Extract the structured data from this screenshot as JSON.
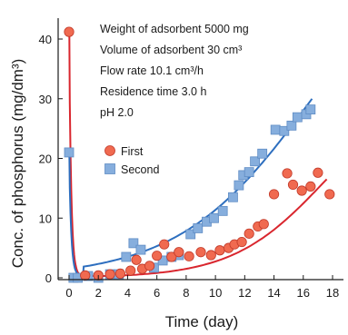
{
  "chart_data": {
    "type": "scatter",
    "xlabel": "Time (day)",
    "ylabel": "Conc. of phosphorus (mg/dm³)",
    "xlim": [
      -0.3,
      18.2
    ],
    "ylim": [
      0,
      45
    ],
    "x_ticks": [
      0,
      2,
      4,
      6,
      8,
      10,
      12,
      14,
      16,
      18
    ],
    "y_ticks": [
      0,
      10,
      20,
      30,
      40
    ],
    "grid": false,
    "legend_position": "center-left",
    "annotations": [
      "Weight of adsorbent 5000 mg",
      "Volume of adsorbent 30 cm³",
      "Flow rate 10.1 cm³/h",
      "Residence time 3.0 h",
      "pH 2.0"
    ],
    "series": [
      {
        "name": "First",
        "marker": "circle",
        "color": "#e8503a",
        "curve_color": "#d9262e",
        "points": [
          [
            0,
            41.2
          ],
          [
            1.1,
            0.4
          ],
          [
            2,
            0.4
          ],
          [
            2.8,
            0.6
          ],
          [
            3.5,
            0.7
          ],
          [
            4.2,
            1.2
          ],
          [
            4.6,
            3.0
          ],
          [
            5,
            1.5
          ],
          [
            5.5,
            2.0
          ],
          [
            6,
            3.7
          ],
          [
            6.5,
            5.6
          ],
          [
            7,
            3.5
          ],
          [
            7.5,
            4.3
          ],
          [
            8.2,
            3.6
          ],
          [
            9,
            4.3
          ],
          [
            9.7,
            3.8
          ],
          [
            10.3,
            4.6
          ],
          [
            10.9,
            5.0
          ],
          [
            11.3,
            5.6
          ],
          [
            11.8,
            6.0
          ],
          [
            12.3,
            7.4
          ],
          [
            12.9,
            8.6
          ],
          [
            13.3,
            9.0
          ],
          [
            14,
            14.0
          ],
          [
            14.9,
            17.5
          ],
          [
            15.3,
            15.6
          ],
          [
            15.9,
            14.6
          ],
          [
            16.5,
            15.3
          ],
          [
            17,
            17.6
          ],
          [
            17.8,
            14.0
          ]
        ]
      },
      {
        "name": "Second",
        "marker": "square",
        "color": "#7da6d8",
        "curve_color": "#2e6fbf",
        "points": [
          [
            0,
            21.0
          ],
          [
            0.3,
            0.0
          ],
          [
            0.6,
            0.0
          ],
          [
            1.3,
            0.3
          ],
          [
            2,
            0.0
          ],
          [
            2.8,
            0.6
          ],
          [
            3.4,
            0.6
          ],
          [
            3.9,
            3.5
          ],
          [
            4.4,
            5.8
          ],
          [
            4.9,
            4.7
          ],
          [
            5.8,
            1.7
          ],
          [
            6.4,
            2.9
          ],
          [
            7,
            3.5
          ],
          [
            7.5,
            3.8
          ],
          [
            8.3,
            7.3
          ],
          [
            8.8,
            8.3
          ],
          [
            9.4,
            9.4
          ],
          [
            9.9,
            10.0
          ],
          [
            10.5,
            11.2
          ],
          [
            11.2,
            13.5
          ],
          [
            11.6,
            15.5
          ],
          [
            11.9,
            17.2
          ],
          [
            12.3,
            17.7
          ],
          [
            12.7,
            19.5
          ],
          [
            13.2,
            20.8
          ],
          [
            14.1,
            24.8
          ],
          [
            14.7,
            24.6
          ],
          [
            15.2,
            25.5
          ],
          [
            15.6,
            26.9
          ],
          [
            16.2,
            27.4
          ],
          [
            16.5,
            28.2
          ]
        ]
      }
    ]
  }
}
